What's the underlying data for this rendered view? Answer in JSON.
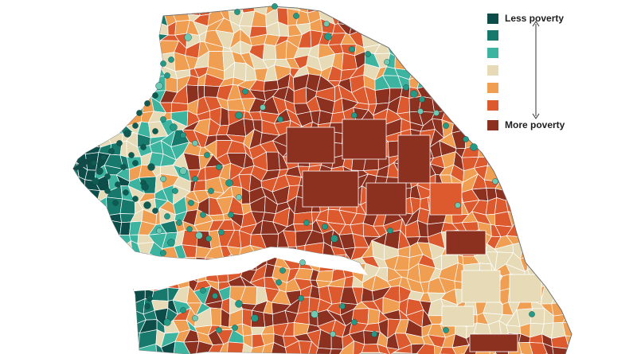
{
  "legend": {
    "top_label": "Less poverty",
    "bottom_label": "More poverty",
    "classes": [
      {
        "label": "Less poverty",
        "color": "#0c4d4a"
      },
      {
        "label": "",
        "color": "#17786c"
      },
      {
        "label": "",
        "color": "#3db49f"
      },
      {
        "label": "",
        "color": "#e6dbb6"
      },
      {
        "label": "",
        "color": "#ef9e52"
      },
      {
        "label": "",
        "color": "#dc5a2e"
      },
      {
        "label": "More poverty",
        "color": "#8c3020"
      }
    ]
  },
  "colors": {
    "dot": "#249a86",
    "dot_dark": "#0f5a52",
    "dot_light": "#6fc8b2",
    "border": "#ffffff",
    "background": "#ffffff"
  }
}
